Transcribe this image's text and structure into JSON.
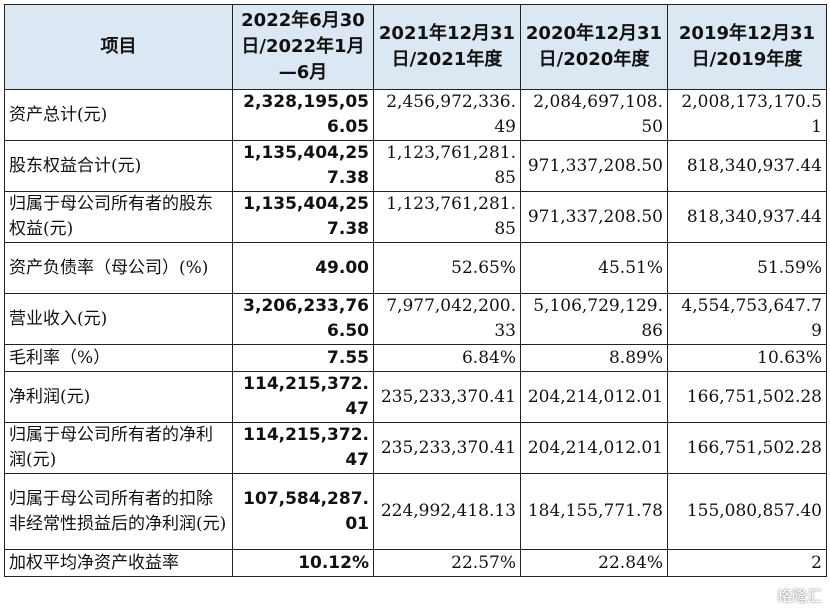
{
  "table": {
    "headers": [
      "项目",
      "2022年6月30日/2022年1月—6月",
      "2021年12月31日/2021年度",
      "2020年12月31日/2020年度",
      "2019年12月31日/2019年度"
    ],
    "rows": [
      {
        "label": "资产总计(元)",
        "v": [
          "2,328,195,056.05",
          "2,456,972,336.49",
          "2,084,697,108.50",
          "2,008,173,170.51"
        ]
      },
      {
        "label": "股东权益合计(元)",
        "v": [
          "1,135,404,257.38",
          "1,123,761,281.85",
          "971,337,208.50",
          "818,340,937.44"
        ]
      },
      {
        "label": "归属于母公司所有者的股东权益(元)",
        "v": [
          "1,135,404,257.38",
          "1,123,761,281.85",
          "971,337,208.50",
          "818,340,937.44"
        ]
      },
      {
        "label": "资产负债率（母公司）(%)",
        "v": [
          "49.00",
          "52.65%",
          "45.51%",
          "51.59%"
        ]
      },
      {
        "label": "营业收入(元)",
        "v": [
          "3,206,233,766.50",
          "7,977,042,200.33",
          "5,106,729,129.86",
          "4,554,753,647.79"
        ]
      },
      {
        "label": "毛利率（%）",
        "v": [
          "7.55",
          "6.84%",
          "8.89%",
          "10.63%"
        ]
      },
      {
        "label": "净利润(元)",
        "v": [
          "114,215,372.47",
          "235,233,370.41",
          "204,214,012.01",
          "166,751,502.28"
        ]
      },
      {
        "label": "归属于母公司所有者的净利润(元)",
        "v": [
          "114,215,372.47",
          "235,233,370.41",
          "204,214,012.01",
          "166,751,502.28"
        ]
      },
      {
        "label": "归属于母公司所有者的扣除非经常性损益后的净利润(元)",
        "v": [
          "107,584,287.01",
          "224,992,418.13",
          "184,155,771.78",
          "155,080,857.40"
        ]
      },
      {
        "label": "加权平均净资产收益率",
        "v": [
          "10.12%",
          "22.57%",
          "22.84%",
          "2"
        ]
      }
    ]
  },
  "watermark": "格隆汇"
}
